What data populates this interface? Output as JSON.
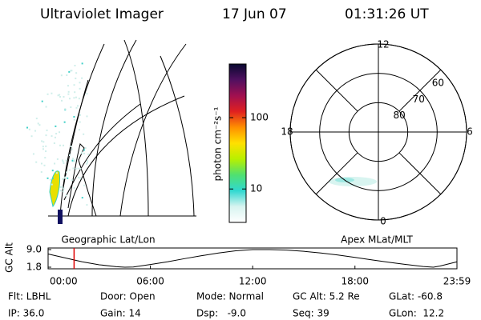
{
  "header": {
    "title": "Ultraviolet Imager",
    "date": "17 Jun 07",
    "time": "01:31:26 UT"
  },
  "chart_data": [
    {
      "type": "map",
      "xlabel": "Geographic Lat/Lon"
    },
    {
      "type": "colorbar",
      "label": "photon cm⁻²s⁻¹",
      "log_scale": true,
      "ylim": [
        3.4,
        565
      ],
      "yticks": [
        10,
        100
      ],
      "colors": [
        "#ffffff",
        "#d8f4f0",
        "#30d8d0",
        "#50e070",
        "#b8f000",
        "#ffe000",
        "#ff9000",
        "#e02020",
        "#a01050",
        "#501060",
        "#080830"
      ]
    },
    {
      "type": "polar",
      "xlabel": "Apex MLat/MLT",
      "rlim": [
        90,
        60
      ],
      "rticks": [
        80,
        70,
        60
      ],
      "thetaticks": [
        12,
        18,
        6,
        0
      ]
    },
    {
      "type": "line",
      "ylabel": "GC Alt",
      "color": "#000000",
      "x": [
        0,
        1,
        2,
        3,
        4,
        4.5,
        5,
        6,
        7,
        8,
        9,
        10,
        11,
        12,
        13,
        14,
        15,
        16,
        17,
        18,
        19,
        20,
        21,
        22,
        22.6,
        23,
        23.983
      ],
      "values": [
        7.2,
        5.6,
        4.0,
        2.8,
        2.0,
        1.8,
        1.9,
        2.9,
        4.0,
        5.3,
        6.5,
        7.6,
        8.5,
        9.0,
        9.0,
        8.8,
        8.3,
        7.6,
        6.8,
        5.8,
        4.8,
        3.8,
        2.9,
        2.1,
        1.8,
        2.3,
        4.0
      ],
      "xlim": [
        0,
        23.983
      ],
      "xticks": [
        {
          "value": 0,
          "label": "00:00"
        },
        {
          "value": 6,
          "label": "06:00"
        },
        {
          "value": 12,
          "label": "12:00"
        },
        {
          "value": 18,
          "label": "18:00"
        },
        {
          "value": 23.983,
          "label": "23:59"
        }
      ],
      "ylim": [
        1.8,
        9.0
      ],
      "yticks": [
        {
          "value": 9.0,
          "label": "9.0"
        },
        1.8
      ],
      "current_time": 1.524,
      "current_color": "#e00000"
    }
  ],
  "status": {
    "rows": [
      [
        "Flt: LBHL",
        "Door: Open",
        "Mode: Normal",
        "GC Alt: 5.2 Re",
        "GLat: -60.8"
      ],
      [
        "IP: 36.0",
        "Gain: 14",
        "Dsp:   -9.0",
        "Seq: 39",
        "GLon:  12.2"
      ]
    ]
  }
}
